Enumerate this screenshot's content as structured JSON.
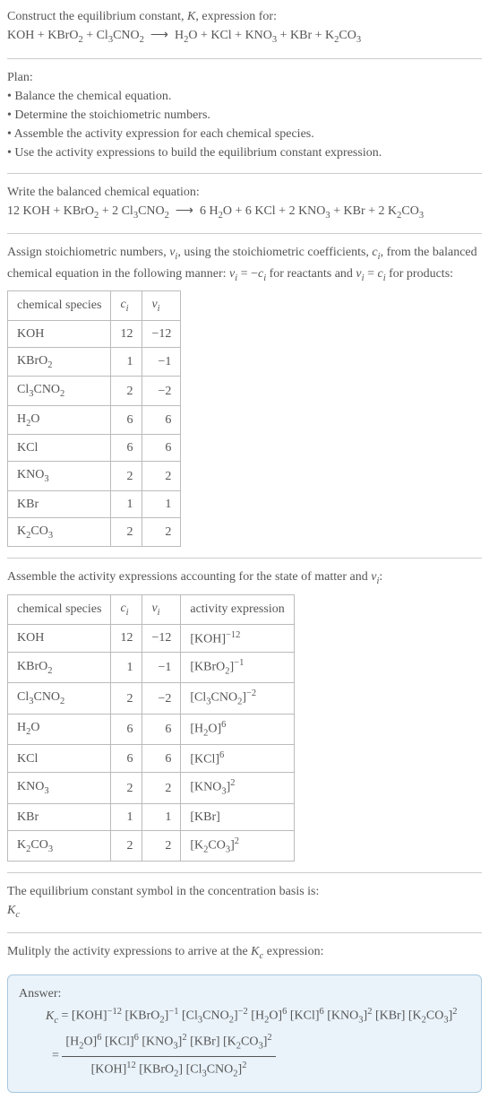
{
  "intro": {
    "line1_pre": "Construct the equilibrium constant, ",
    "line1_k": "K",
    "line1_post": ", expression for:"
  },
  "plan": {
    "title": "Plan:",
    "items": [
      "Balance the chemical equation.",
      "Determine the stoichiometric numbers.",
      "Assemble the activity expression for each chemical species.",
      "Use the activity expressions to build the equilibrium constant expression."
    ]
  },
  "balanced_heading": "Write the balanced chemical equation:",
  "stoich_heading_a": "Assign stoichiometric numbers, ",
  "stoich_heading_b": ", using the stoichiometric coefficients, ",
  "stoich_heading_c": ", from the balanced chemical equation in the following manner: ",
  "stoich_heading_d": " for reactants and ",
  "stoich_heading_e": " for products:",
  "table1": {
    "headers": [
      "chemical species",
      "c",
      "ν"
    ],
    "rows": [
      {
        "sp": "KOH",
        "c": "12",
        "v": "-12"
      },
      {
        "sp": "KBrO2",
        "c": "1",
        "v": "-1"
      },
      {
        "sp": "Cl3CNO2",
        "c": "2",
        "v": "-2"
      },
      {
        "sp": "H2O",
        "c": "6",
        "v": "6"
      },
      {
        "sp": "KCl",
        "c": "6",
        "v": "6"
      },
      {
        "sp": "KNO3",
        "c": "2",
        "v": "2"
      },
      {
        "sp": "KBr",
        "c": "1",
        "v": "1"
      },
      {
        "sp": "K2CO3",
        "c": "2",
        "v": "2"
      }
    ]
  },
  "activity_heading_a": "Assemble the activity expressions accounting for the state of matter and ",
  "activity_heading_b": ":",
  "table2": {
    "headers": [
      "chemical species",
      "c",
      "ν",
      "activity expression"
    ],
    "rows": [
      {
        "sp": "KOH",
        "c": "12",
        "v": "-12",
        "exp": "-12"
      },
      {
        "sp": "KBrO2",
        "c": "1",
        "v": "-1",
        "exp": "-1"
      },
      {
        "sp": "Cl3CNO2",
        "c": "2",
        "v": "-2",
        "exp": "-2"
      },
      {
        "sp": "H2O",
        "c": "6",
        "v": "6",
        "exp": "6"
      },
      {
        "sp": "KCl",
        "c": "6",
        "v": "6",
        "exp": "6"
      },
      {
        "sp": "KNO3",
        "c": "2",
        "v": "2",
        "exp": "2"
      },
      {
        "sp": "KBr",
        "c": "1",
        "v": "1",
        "exp": ""
      },
      {
        "sp": "K2CO3",
        "c": "2",
        "v": "2",
        "exp": "2"
      }
    ]
  },
  "eq_symbol_a": "The equilibrium constant symbol in the concentration basis is:",
  "mult_heading": "Mulitply the activity expressions to arrive at the ",
  "mult_heading_b": " expression:",
  "answer_label": "Answer:",
  "species_fmt": {
    "KOH": {
      "html": "KOH"
    },
    "KBrO2": {
      "html": "KBrO<span class=\"sub\">2</span>"
    },
    "Cl3CNO2": {
      "html": "Cl<span class=\"sub\">3</span>CNO<span class=\"sub\">2</span>"
    },
    "H2O": {
      "html": "H<span class=\"sub\">2</span>O"
    },
    "KCl": {
      "html": "KCl"
    },
    "KNO3": {
      "html": "KNO<span class=\"sub\">3</span>"
    },
    "KBr": {
      "html": "KBr"
    },
    "K2CO3": {
      "html": "K<span class=\"sub\">2</span>CO<span class=\"sub\">3</span>"
    }
  },
  "colors": {
    "text": "#555555",
    "border": "#bbbbbb",
    "hr": "#cccccc",
    "answer_bg": "#eaf3fa",
    "answer_border": "#a8c8e0"
  }
}
